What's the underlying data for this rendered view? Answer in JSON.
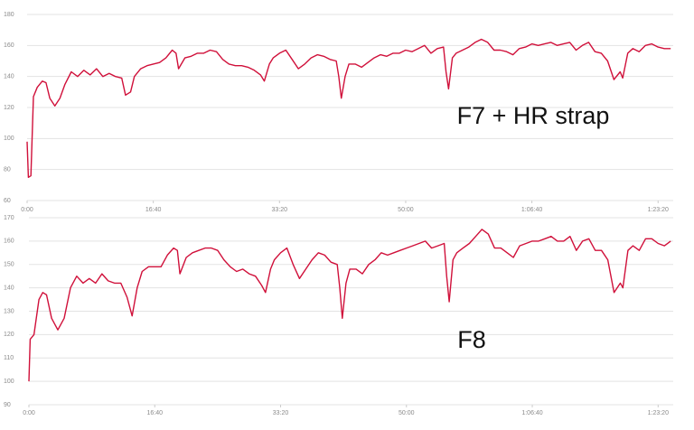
{
  "chart_data": [
    {
      "type": "line",
      "annotation": "F7 + HR strap",
      "color": "#d0103a",
      "grid": true,
      "xlim": [
        0,
        5120
      ],
      "xticks": [
        {
          "value": 0,
          "label": "0:00"
        },
        {
          "value": 1000,
          "label": "16:40"
        },
        {
          "value": 2000,
          "label": "33:20"
        },
        {
          "value": 3000,
          "label": "50:00"
        },
        {
          "value": 4000,
          "label": "1:06:40"
        },
        {
          "value": 5000,
          "label": "1:23:20"
        }
      ],
      "ylim": [
        60,
        180
      ],
      "yticks": [
        60,
        80,
        100,
        120,
        140,
        160,
        180
      ],
      "x": [
        0,
        10,
        30,
        50,
        80,
        120,
        150,
        180,
        220,
        260,
        300,
        350,
        400,
        450,
        500,
        550,
        600,
        650,
        700,
        750,
        780,
        820,
        850,
        900,
        950,
        1000,
        1050,
        1100,
        1150,
        1180,
        1200,
        1250,
        1300,
        1350,
        1400,
        1450,
        1500,
        1550,
        1600,
        1650,
        1700,
        1750,
        1800,
        1850,
        1880,
        1920,
        1950,
        2000,
        2050,
        2100,
        2150,
        2200,
        2250,
        2300,
        2350,
        2400,
        2450,
        2470,
        2490,
        2520,
        2550,
        2600,
        2650,
        2700,
        2750,
        2800,
        2850,
        2900,
        2950,
        3000,
        3050,
        3100,
        3150,
        3200,
        3250,
        3300,
        3320,
        3340,
        3370,
        3400,
        3450,
        3500,
        3550,
        3600,
        3650,
        3700,
        3750,
        3800,
        3850,
        3900,
        3950,
        4000,
        4050,
        4100,
        4150,
        4200,
        4250,
        4300,
        4350,
        4400,
        4450,
        4500,
        4550,
        4600,
        4650,
        4700,
        4720,
        4760,
        4800,
        4850,
        4900,
        4950,
        5000,
        5050,
        5100
      ],
      "values": [
        98,
        75,
        76,
        127,
        133,
        137,
        136,
        126,
        121,
        126,
        135,
        143,
        140,
        144,
        141,
        145,
        140,
        142,
        140,
        139,
        128,
        130,
        140,
        145,
        147,
        148,
        149,
        152,
        157,
        155,
        145,
        152,
        153,
        155,
        155,
        157,
        156,
        151,
        148,
        147,
        147,
        146,
        144,
        141,
        137,
        148,
        152,
        155,
        157,
        151,
        145,
        148,
        152,
        154,
        153,
        151,
        150,
        140,
        126,
        140,
        148,
        148,
        146,
        149,
        152,
        154,
        153,
        155,
        155,
        157,
        156,
        158,
        160,
        155,
        158,
        159,
        143,
        132,
        152,
        155,
        157,
        159,
        162,
        164,
        162,
        157,
        157,
        156,
        154,
        158,
        159,
        161,
        160,
        161,
        162,
        160,
        161,
        162,
        157,
        160,
        162,
        156,
        155,
        150,
        138,
        143,
        139,
        155,
        158,
        156,
        160,
        161,
        159,
        158,
        158
      ]
    },
    {
      "type": "line",
      "annotation": "F8",
      "color": "#d0103a",
      "grid": true,
      "xlim": [
        0,
        5120
      ],
      "xticks": [
        {
          "value": 0,
          "label": "0:00"
        },
        {
          "value": 1000,
          "label": "16:40"
        },
        {
          "value": 2000,
          "label": "33:20"
        },
        {
          "value": 3000,
          "label": "50:00"
        },
        {
          "value": 4000,
          "label": "1:06:40"
        },
        {
          "value": 5000,
          "label": "1:23:20"
        }
      ],
      "ylim": [
        90,
        170
      ],
      "yticks": [
        90,
        100,
        110,
        120,
        130,
        140,
        150,
        160,
        170
      ],
      "x": [
        0,
        10,
        40,
        80,
        110,
        140,
        180,
        230,
        280,
        330,
        380,
        430,
        480,
        530,
        580,
        630,
        680,
        730,
        780,
        820,
        860,
        900,
        950,
        1000,
        1050,
        1100,
        1150,
        1180,
        1200,
        1250,
        1300,
        1350,
        1400,
        1450,
        1500,
        1550,
        1600,
        1650,
        1700,
        1750,
        1800,
        1850,
        1880,
        1920,
        1950,
        2000,
        2050,
        2100,
        2150,
        2200,
        2250,
        2300,
        2350,
        2400,
        2450,
        2470,
        2490,
        2520,
        2550,
        2600,
        2650,
        2700,
        2750,
        2800,
        2850,
        2900,
        2950,
        3000,
        3050,
        3100,
        3150,
        3200,
        3250,
        3300,
        3320,
        3340,
        3370,
        3400,
        3450,
        3500,
        3550,
        3600,
        3650,
        3700,
        3750,
        3800,
        3850,
        3900,
        3950,
        4000,
        4050,
        4100,
        4150,
        4200,
        4250,
        4300,
        4350,
        4400,
        4450,
        4500,
        4550,
        4600,
        4650,
        4700,
        4720,
        4760,
        4800,
        4850,
        4900,
        4950,
        5000,
        5050,
        5100
      ],
      "values": [
        100,
        118,
        120,
        135,
        138,
        137,
        127,
        122,
        127,
        140,
        145,
        142,
        144,
        142,
        146,
        143,
        142,
        142,
        136,
        128,
        140,
        147,
        149,
        149,
        149,
        154,
        157,
        156,
        146,
        153,
        155,
        156,
        157,
        157,
        156,
        152,
        149,
        147,
        148,
        146,
        145,
        141,
        138,
        148,
        152,
        155,
        157,
        150,
        144,
        148,
        152,
        155,
        154,
        151,
        150,
        140,
        127,
        142,
        148,
        148,
        146,
        150,
        152,
        155,
        154,
        155,
        156,
        157,
        158,
        159,
        160,
        157,
        158,
        159,
        145,
        134,
        152,
        155,
        157,
        159,
        162,
        165,
        163,
        157,
        157,
        155,
        153,
        158,
        159,
        160,
        160,
        161,
        162,
        160,
        160,
        162,
        156,
        160,
        161,
        156,
        156,
        152,
        138,
        142,
        140,
        156,
        158,
        156,
        161,
        161,
        159,
        158,
        160
      ]
    }
  ]
}
